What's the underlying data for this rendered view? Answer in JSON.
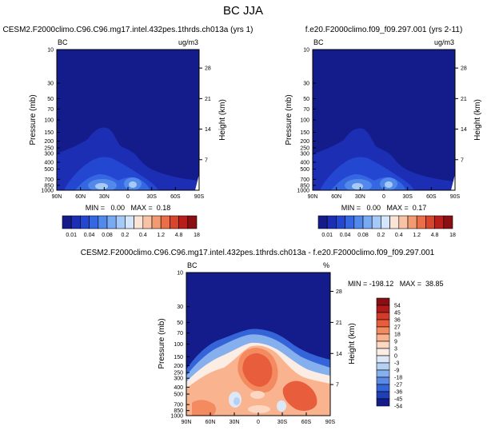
{
  "title": "BC JJA",
  "chart_data": [
    {
      "type": "heatmap",
      "title": "CESM2.F2000climo.C96.C96.mg17.intel.432pes.1thrds.ch013a (yrs 1)",
      "variable": "BC",
      "units": "ug/m3",
      "ylabel": "Pressure (mb)",
      "ylabel_right": "Height (km)",
      "x_ticks": [
        "90N",
        "60N",
        "30N",
        "0",
        "30S",
        "60S",
        "90S"
      ],
      "y_ticks": [
        "10",
        "30",
        "50",
        "70",
        "100",
        "150",
        "200",
        "250",
        "300",
        "400",
        "500",
        "700",
        "850",
        "1000"
      ],
      "height_ticks": [
        "28",
        "21",
        "14",
        "7"
      ],
      "stats": "MIN =   0.00   MAX =  0.18",
      "levels": [
        "0.01",
        "0.04",
        "0.08",
        "0.2",
        "0.4",
        "1.2",
        "4.8",
        "18"
      ]
    },
    {
      "type": "heatmap",
      "title": "f.e20.F2000climo.f09_f09.297.001 (yrs 2-11)",
      "variable": "BC",
      "units": "ug/m3",
      "ylabel": "Pressure (mb)",
      "ylabel_right": "Height (km)",
      "x_ticks": [
        "90N",
        "60N",
        "30N",
        "0",
        "30S",
        "60S",
        "90S"
      ],
      "y_ticks": [
        "10",
        "30",
        "50",
        "70",
        "100",
        "150",
        "200",
        "250",
        "300",
        "400",
        "500",
        "700",
        "850",
        "1000"
      ],
      "height_ticks": [
        "28",
        "21",
        "14",
        "7"
      ],
      "stats": "MIN =   0.00   MAX =  0.17",
      "levels": [
        "0.01",
        "0.04",
        "0.08",
        "0.2",
        "0.4",
        "1.2",
        "4.8",
        "18"
      ]
    },
    {
      "type": "heatmap",
      "title": "CESM2.F2000climo.C96.C96.mg17.intel.432pes.1thrds.ch013a - f.e20.F2000climo.f09_f09.297.001",
      "variable": "BC",
      "units": "%",
      "ylabel": "Pressure (mb)",
      "ylabel_right": "Height (km)",
      "x_ticks": [
        "90N",
        "60N",
        "30N",
        "0",
        "30S",
        "60S",
        "90S"
      ],
      "y_ticks": [
        "10",
        "30",
        "50",
        "70",
        "100",
        "150",
        "200",
        "250",
        "300",
        "400",
        "500",
        "700",
        "850",
        "1000"
      ],
      "height_ticks": [
        "28",
        "21",
        "14",
        "7"
      ],
      "stats": "MIN = -198.12   MAX =  38.85",
      "levels": [
        "54",
        "45",
        "36",
        "27",
        "18",
        "9",
        "3",
        "0",
        "-3",
        "-9",
        "-18",
        "-27",
        "-36",
        "-45",
        "-54"
      ]
    }
  ],
  "colors": {
    "seq": [
      "#141c8c",
      "#1b2eb4",
      "#2447d2",
      "#3567e2",
      "#5289ea",
      "#7aaaf2",
      "#a6caf7",
      "#d4e6fb",
      "#fbe3d6",
      "#f8c2a4",
      "#f29a72",
      "#ea6e48",
      "#d9442c",
      "#b81f1c",
      "#8a0f12"
    ],
    "div": [
      "#8a0f12",
      "#b01b19",
      "#d23a2a",
      "#e85d3c",
      "#f48a60",
      "#f9b48f",
      "#fcd7c2",
      "#fbece4",
      "#dce8f7",
      "#b6d0f3",
      "#86afee",
      "#5a8ae6",
      "#3564d8",
      "#1f3fb7",
      "#141c8c"
    ]
  }
}
